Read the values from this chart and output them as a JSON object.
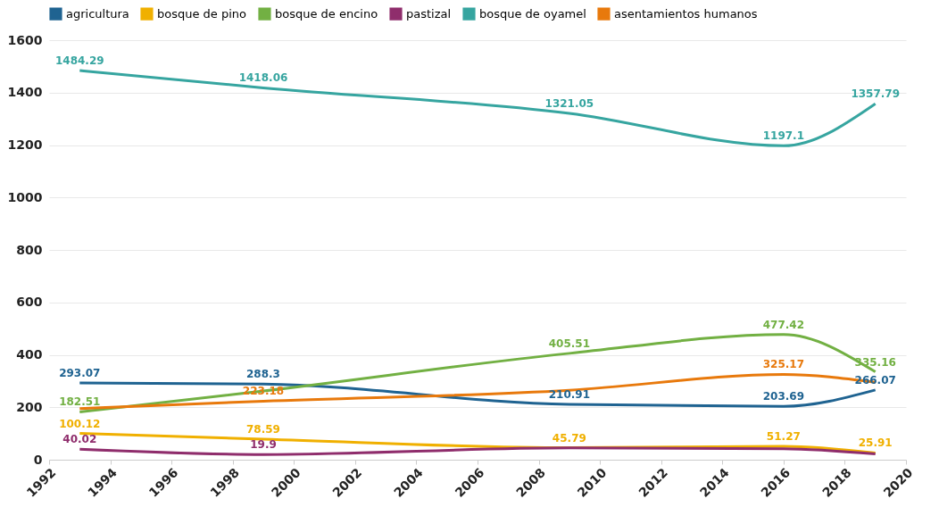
{
  "chart_data": {
    "type": "line",
    "x": [
      1993,
      1999,
      2009,
      2016,
      2019
    ],
    "series": [
      {
        "name": "agricultura",
        "color": "#1f6391",
        "values": [
          293.07,
          288.3,
          210.91,
          203.69,
          266.07
        ],
        "value_labels": [
          "293.07",
          "288.3",
          "210.91",
          "203.69",
          "266.07"
        ]
      },
      {
        "name": "bosque de pino",
        "color": "#f0b000",
        "values": [
          100.12,
          78.59,
          45.79,
          51.27,
          25.91
        ],
        "value_labels": [
          "100.12",
          "78.59",
          "45.79",
          "51.27",
          "25.91"
        ]
      },
      {
        "name": "bosque de encino",
        "color": "#72b043",
        "values": [
          182.51,
          262,
          405.51,
          477.42,
          335.16
        ],
        "value_labels": [
          "182.51",
          null,
          "405.51",
          "477.42",
          "335.16"
        ]
      },
      {
        "name": "pastizal",
        "color": "#8f2d6c",
        "values": [
          40.02,
          19.9,
          45,
          42,
          22
        ],
        "value_labels": [
          "40.02",
          "19.9",
          null,
          null,
          null
        ]
      },
      {
        "name": "bosque de oyamel",
        "color": "#36a5a0",
        "values": [
          1484.29,
          1418.06,
          1321.05,
          1197.1,
          1357.79
        ],
        "value_labels": [
          "1484.29",
          "1418.06",
          "1321.05",
          "1197.1",
          "1357.79"
        ]
      },
      {
        "name": "asentamientos humanos",
        "color": "#e8790c",
        "values": [
          195,
          223.18,
          265,
          325.17,
          295
        ],
        "value_labels": [
          null,
          "223.18",
          null,
          "325.17",
          null
        ]
      }
    ],
    "xlim": [
      1992,
      2020
    ],
    "xticks": [
      1992,
      1994,
      1996,
      1998,
      2000,
      2002,
      2004,
      2006,
      2008,
      2010,
      2012,
      2014,
      2016,
      2018,
      2020
    ],
    "ylim": [
      0,
      1600
    ],
    "yticks": [
      0,
      200,
      400,
      600,
      800,
      1000,
      1200,
      1400,
      1600
    ],
    "grid": "y",
    "legend": "top left",
    "line_style": "solid"
  }
}
